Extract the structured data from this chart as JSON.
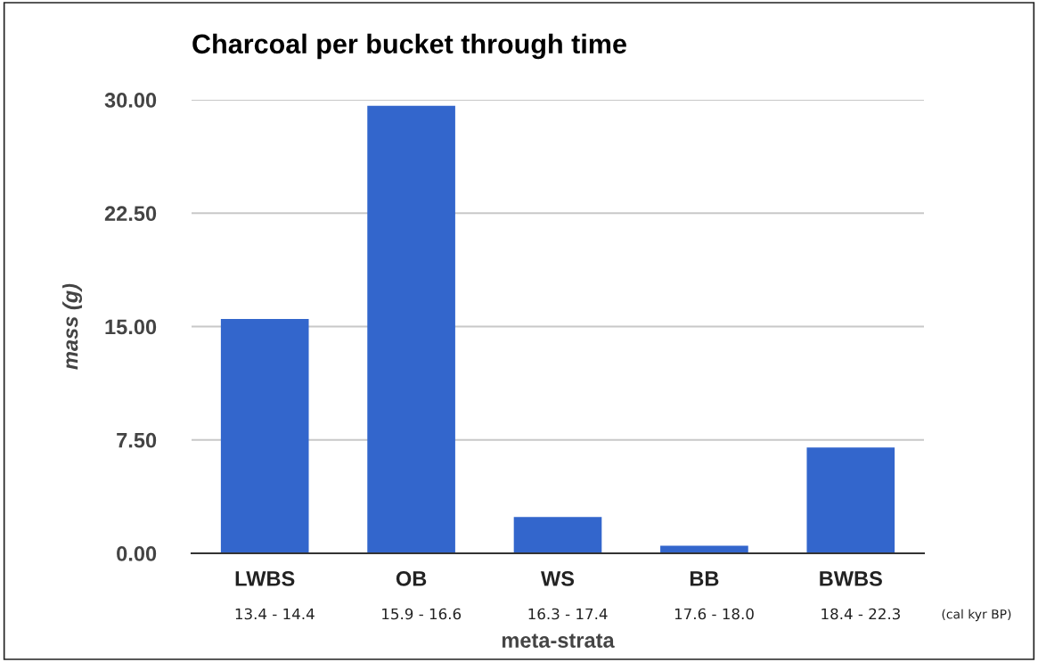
{
  "chart_data": {
    "type": "bar",
    "title": "Charcoal per bucket through time",
    "xlabel": "meta-strata",
    "ylabel": "mass (g)",
    "categories": [
      "LWBS",
      "OB",
      "WS",
      "BB",
      "BWBS"
    ],
    "values": [
      15.5,
      29.6,
      2.4,
      0.5,
      7.0
    ],
    "color": "#3366cc",
    "ylim": [
      0,
      30
    ],
    "yticks": [
      {
        "value": 0,
        "label": "0.00"
      },
      {
        "value": 7.5,
        "label": "7.50"
      },
      {
        "value": 15,
        "label": "15.00"
      },
      {
        "value": 22.5,
        "label": "22.50"
      },
      {
        "value": 30,
        "label": "30.00"
      }
    ],
    "grid": "y",
    "annotations": [
      "13.4 - 14.4",
      "15.9 - 16.6",
      "16.3 - 17.4",
      "17.6 - 18.0",
      "18.4 - 22.3",
      "(cal kyr BP)"
    ]
  }
}
